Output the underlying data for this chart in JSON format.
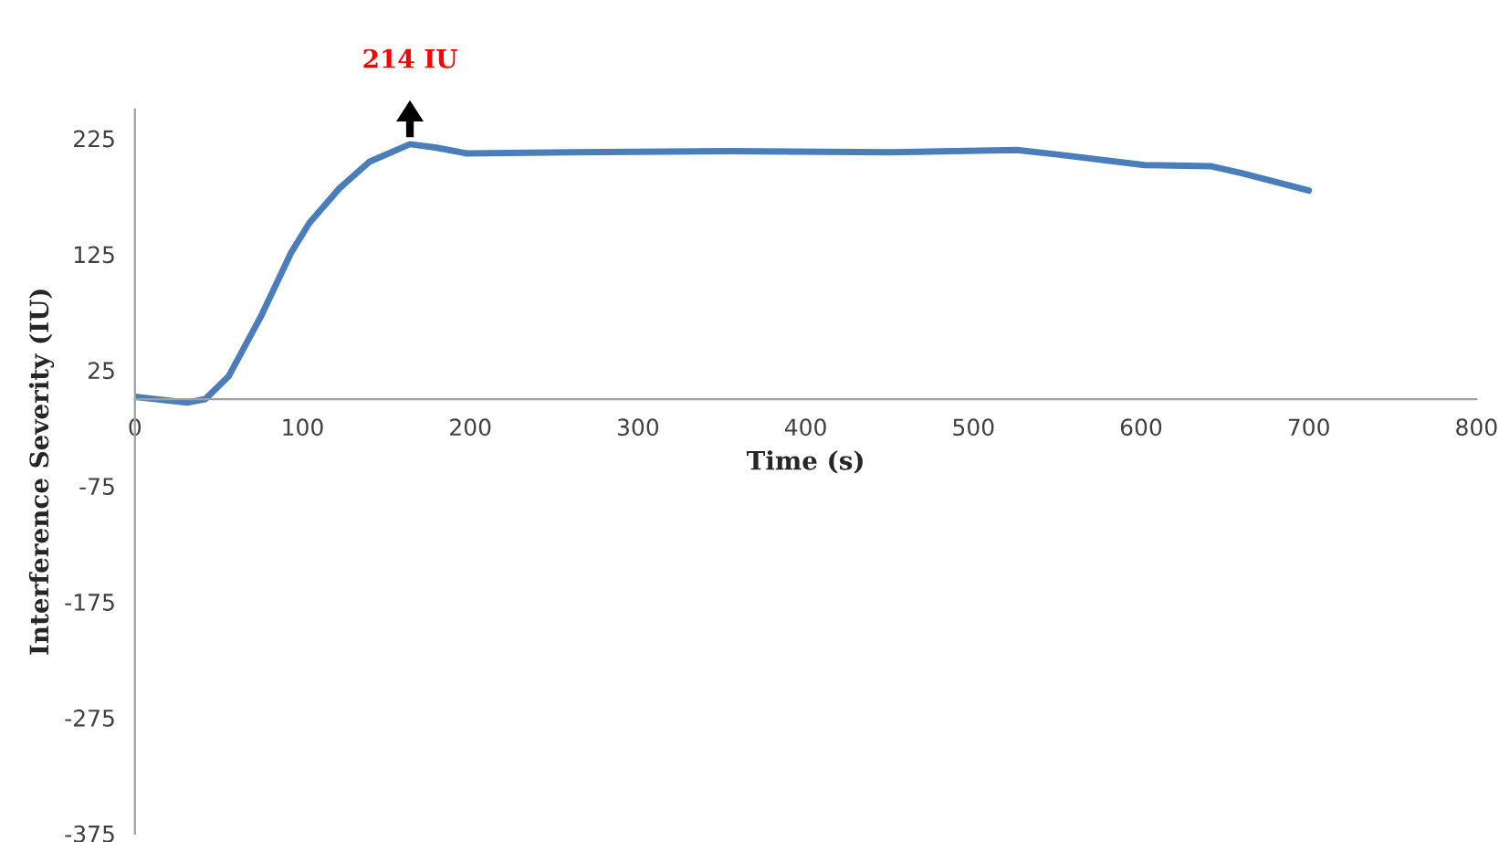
{
  "chart_data": {
    "type": "line",
    "xlabel": "Time (s)",
    "ylabel": "Interference Severity (IU)",
    "x": [
      0,
      31,
      42,
      56,
      75,
      93,
      104,
      122,
      140,
      164,
      180,
      198,
      260,
      355,
      450,
      526,
      551,
      602,
      642,
      660,
      700
    ],
    "series": [
      {
        "color": "#4a7ebb",
        "values": [
          2,
          -3,
          0,
          20,
          71,
          126,
          152,
          182,
          205,
          220,
          217,
          212,
          213,
          214,
          213,
          215,
          211,
          202,
          201,
          195,
          180
        ]
      }
    ],
    "xlim": [
      0,
      800
    ],
    "xticks": [
      0,
      100,
      200,
      300,
      400,
      500,
      600,
      700,
      800
    ],
    "ylim": [
      -375,
      250
    ],
    "yticks": [
      -375,
      -275,
      -175,
      -75,
      25,
      125,
      225
    ],
    "annotations": [
      {
        "text": "214 IU",
        "x": 164,
        "y": 220
      }
    ],
    "grid": false,
    "marker": "none",
    "line_style": "solid"
  }
}
